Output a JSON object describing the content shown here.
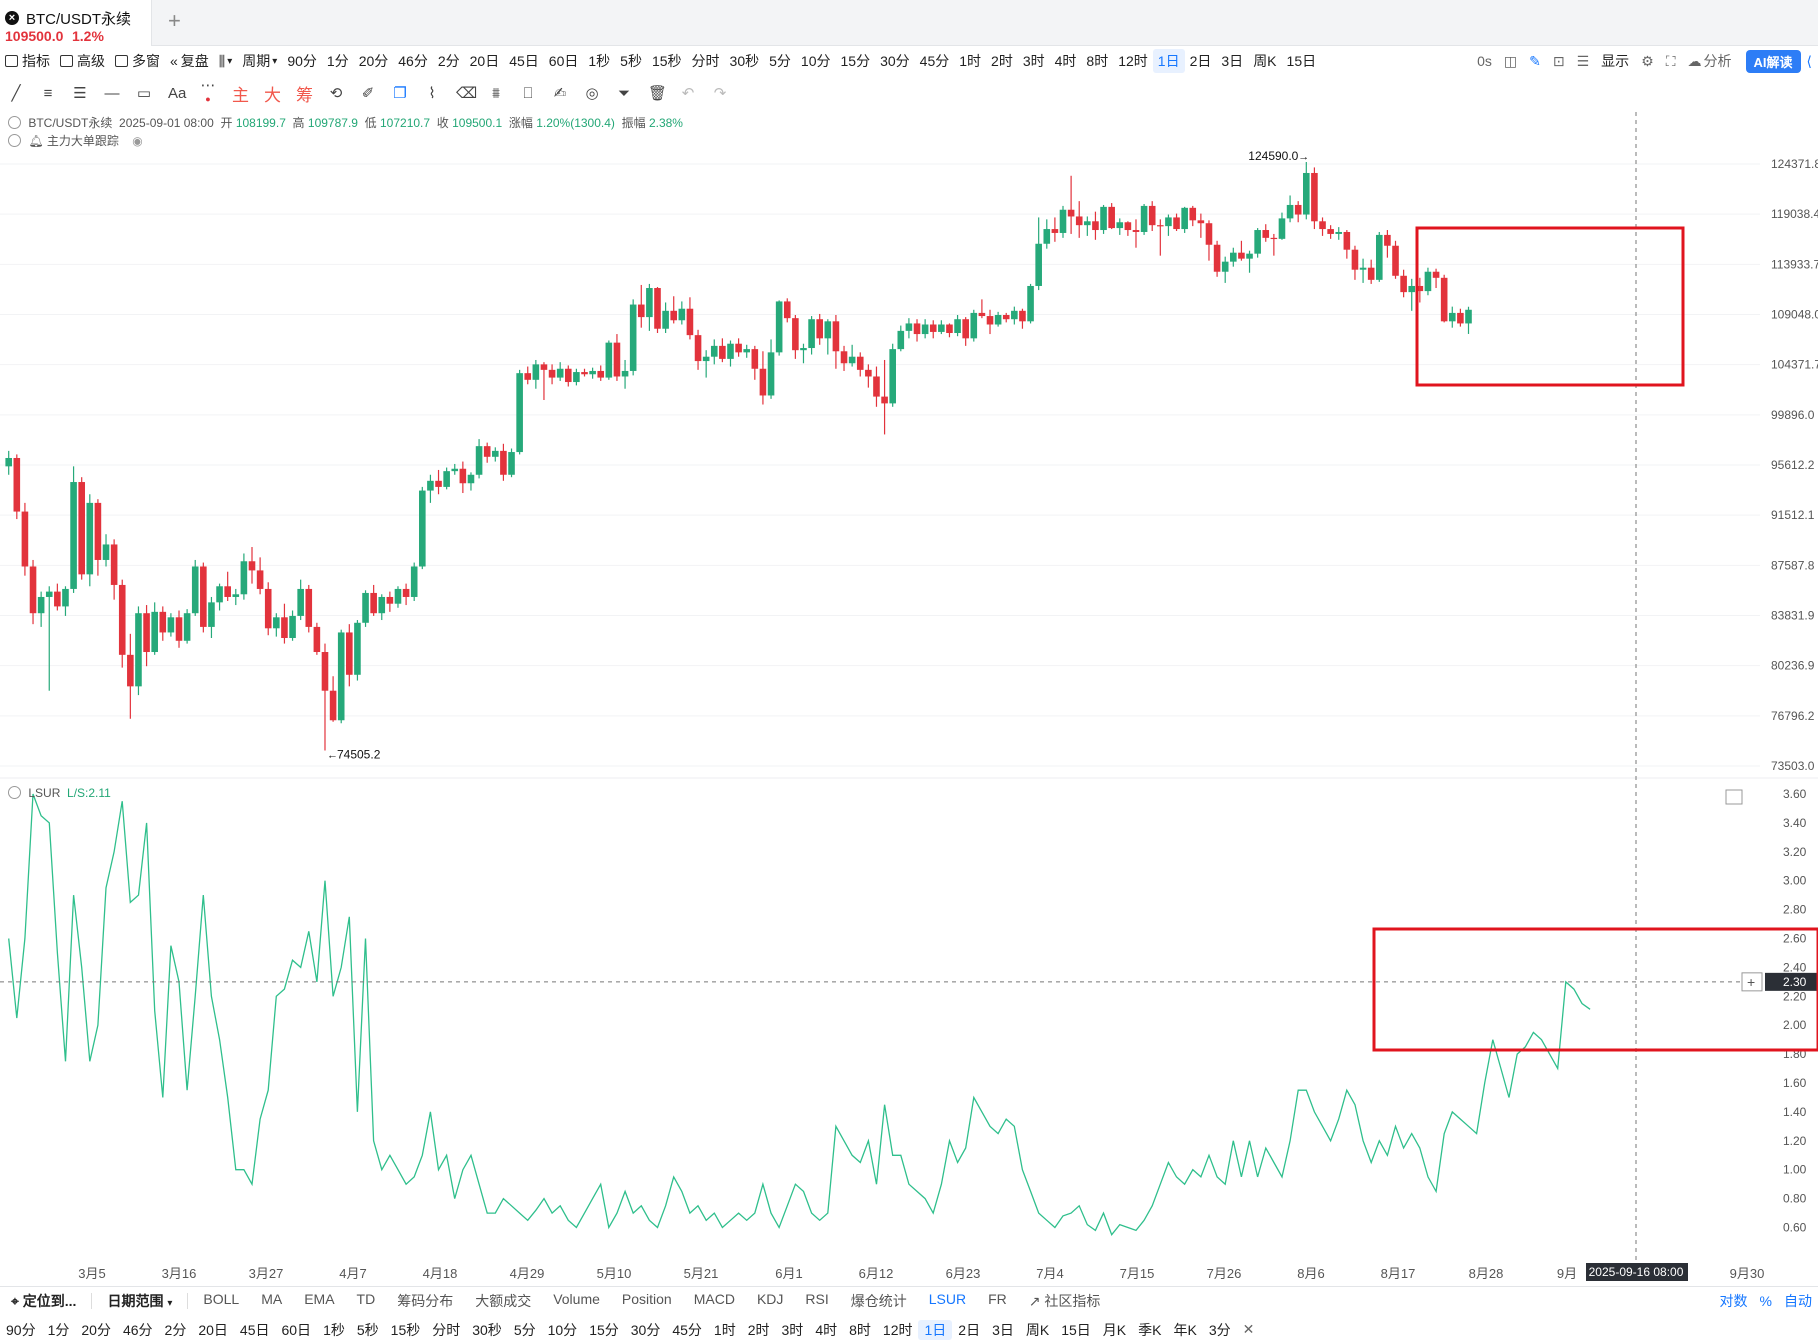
{
  "tab": {
    "title": "BTC/USDT永续",
    "price": "109500.0",
    "change": "1.2%"
  },
  "toolbar": {
    "indicators": "指标",
    "advanced": "高级",
    "multi_window": "多窗",
    "replay": "复盘",
    "period": "周期",
    "periods": [
      "90分",
      "1分",
      "20分",
      "46分",
      "2分",
      "20日",
      "45日",
      "60日",
      "1秒",
      "5秒",
      "15秒",
      "分时",
      "30秒",
      "5分",
      "10分",
      "15分",
      "30分",
      "45分",
      "1时",
      "2时",
      "3时",
      "4时",
      "8时",
      "12时",
      "1日",
      "2日",
      "3日",
      "周K",
      "15日"
    ],
    "active_period": "1日",
    "countdown": "0s",
    "display": "显示",
    "analysis": "分析",
    "ai": "AI解读"
  },
  "drawing_tools": {
    "main": "主",
    "big": "大",
    "chips": "筹",
    "text": "Aa"
  },
  "legend": {
    "symbol": "BTC/USDT永续",
    "datetime": "2025-09-01 08:00",
    "open_label": "开",
    "open": "108199.7",
    "high_label": "高",
    "high": "109787.9",
    "low_label": "低",
    "low": "107210.7",
    "close_label": "收",
    "close": "109500.1",
    "change_label": "涨幅",
    "change": "1.20%(1300.4)",
    "amp_label": "振幅",
    "amp": "2.38%",
    "indicator": "主力大单跟踪"
  },
  "lsur": {
    "name": "LSUR",
    "value": "L/S:2.11",
    "cursor_value": "2.30"
  },
  "price_axis": [
    "124371.8",
    "119038.4",
    "113933.7",
    "109048.0",
    "104371.7",
    "99896.0",
    "95612.2",
    "91512.1",
    "87587.8",
    "83831.9",
    "80236.9",
    "76796.2",
    "73503.0"
  ],
  "lsur_axis": [
    "3.60",
    "3.40",
    "3.20",
    "3.00",
    "2.80",
    "2.60",
    "2.40",
    "2.20",
    "2.00",
    "1.80",
    "1.60",
    "1.40",
    "1.20",
    "1.00",
    "0.80",
    "0.60"
  ],
  "date_axis": [
    "3月5",
    "3月16",
    "3月27",
    "4月7",
    "4月18",
    "4月29",
    "5月10",
    "5月21",
    "6月1",
    "6月12",
    "6月23",
    "7月4",
    "7月15",
    "7月26",
    "8月6",
    "8月17",
    "8月28",
    "9月",
    "9月30"
  ],
  "cursor_date": "2025-09-16 08:00",
  "annotations": {
    "high": "124590.0",
    "low": "74505.2"
  },
  "bottom_bar": {
    "locate": "定位到...",
    "date_range": "日期范围",
    "indicators": [
      "BOLL",
      "MA",
      "EMA",
      "TD",
      "筹码分布",
      "大额成交",
      "Volume",
      "Position",
      "MACD",
      "KDJ",
      "RSI",
      "爆仓统计",
      "LSUR",
      "FR"
    ],
    "active_indicator": "LSUR",
    "community": "社区指标",
    "log": "对数",
    "percent": "%",
    "auto": "自动"
  },
  "bottom_periods": [
    "90分",
    "1分",
    "20分",
    "46分",
    "2分",
    "20日",
    "45日",
    "60日",
    "1秒",
    "5秒",
    "15秒",
    "分时",
    "30秒",
    "5分",
    "10分",
    "15分",
    "30分",
    "45分",
    "1时",
    "2时",
    "3时",
    "4时",
    "8时",
    "12时",
    "1日",
    "2日",
    "3日",
    "周K",
    "15日",
    "月K",
    "季K",
    "年K",
    "3分"
  ],
  "bottom_active_period": "1日",
  "colors": {
    "up": "#26a97a",
    "down": "#e2333c",
    "lsur_line": "#2fbf8c",
    "highlight": "#e0141e",
    "accent": "#1677ff"
  },
  "chart_data": {
    "type": "candlestick",
    "x_start": "2025-02-24",
    "candles": [
      [
        95500,
        96800,
        94800,
        96200
      ],
      [
        96200,
        96500,
        91200,
        91800
      ],
      [
        91800,
        92500,
        86800,
        87500
      ],
      [
        87500,
        88000,
        83200,
        84000
      ],
      [
        84000,
        85600,
        83000,
        85200
      ],
      [
        85200,
        86000,
        78500,
        85600
      ],
      [
        85600,
        86200,
        84200,
        84500
      ],
      [
        84500,
        86000,
        83800,
        85800
      ],
      [
        85800,
        95500,
        85500,
        94200
      ],
      [
        94200,
        94600,
        86500,
        86900
      ],
      [
        86900,
        93200,
        86000,
        92500
      ],
      [
        92500,
        92800,
        86800,
        88000
      ],
      [
        88000,
        90000,
        87500,
        89200
      ],
      [
        89200,
        89600,
        85000,
        86100
      ],
      [
        86100,
        86500,
        80100,
        81000
      ],
      [
        81000,
        82500,
        76600,
        78800
      ],
      [
        78800,
        84500,
        78200,
        84000
      ],
      [
        84000,
        84600,
        80200,
        81200
      ],
      [
        81200,
        84800,
        81000,
        84100
      ],
      [
        84100,
        84500,
        82000,
        82600
      ],
      [
        82600,
        84000,
        82300,
        83700
      ],
      [
        83700,
        84200,
        81500,
        82000
      ],
      [
        82000,
        84300,
        81800,
        84000
      ],
      [
        84000,
        88000,
        83800,
        87500
      ],
      [
        87500,
        87800,
        82600,
        83000
      ],
      [
        83000,
        85200,
        82200,
        84800
      ],
      [
        84800,
        86200,
        84200,
        86000
      ],
      [
        86000,
        87100,
        84900,
        85200
      ],
      [
        85200,
        85800,
        84600,
        85400
      ],
      [
        85400,
        88500,
        85000,
        87900
      ],
      [
        87900,
        89000,
        86200,
        87200
      ],
      [
        87200,
        88200,
        85400,
        85800
      ],
      [
        85800,
        86300,
        82400,
        82900
      ],
      [
        82900,
        84000,
        82300,
        83700
      ],
      [
        83700,
        84700,
        81800,
        82200
      ],
      [
        82200,
        84200,
        82000,
        83800
      ],
      [
        83800,
        86500,
        83500,
        85800
      ],
      [
        85800,
        86100,
        82600,
        83000
      ],
      [
        83000,
        83300,
        81000,
        81200
      ],
      [
        81200,
        81800,
        74505,
        78500
      ],
      [
        78500,
        79500,
        76400,
        76500
      ],
      [
        76500,
        82800,
        76300,
        82600
      ],
      [
        82600,
        83200,
        78800,
        79600
      ],
      [
        79600,
        83500,
        79200,
        83300
      ],
      [
        83300,
        85700,
        83000,
        85500
      ],
      [
        85500,
        86100,
        83800,
        84000
      ],
      [
        84000,
        85400,
        83500,
        85200
      ],
      [
        85200,
        85600,
        84100,
        84700
      ],
      [
        84700,
        86000,
        84400,
        85800
      ],
      [
        85800,
        86200,
        84600,
        85200
      ],
      [
        85200,
        87800,
        84900,
        87500
      ],
      [
        87500,
        93800,
        87300,
        93500
      ],
      [
        93500,
        94800,
        92500,
        94300
      ],
      [
        94300,
        95200,
        93200,
        93800
      ],
      [
        93800,
        95400,
        93600,
        95100
      ],
      [
        95100,
        95700,
        94800,
        95300
      ],
      [
        95300,
        95900,
        93300,
        94100
      ],
      [
        94100,
        95000,
        93500,
        94800
      ],
      [
        94800,
        97800,
        94500,
        97200
      ],
      [
        97200,
        97500,
        95800,
        96300
      ],
      [
        96300,
        97100,
        95900,
        96800
      ],
      [
        96800,
        97400,
        94300,
        94800
      ],
      [
        94800,
        97000,
        94600,
        96700
      ],
      [
        96700,
        103900,
        96500,
        103600
      ],
      [
        103600,
        104200,
        102600,
        103000
      ],
      [
        103000,
        104800,
        102200,
        104400
      ],
      [
        104400,
        104600,
        101200,
        103900
      ],
      [
        103900,
        104400,
        102600,
        103200
      ],
      [
        103200,
        104600,
        102900,
        104000
      ],
      [
        104000,
        104300,
        102400,
        102800
      ],
      [
        102800,
        104000,
        102500,
        103700
      ],
      [
        103700,
        104000,
        103300,
        103500
      ],
      [
        103500,
        104100,
        103100,
        103800
      ],
      [
        103800,
        104300,
        102900,
        103200
      ],
      [
        103200,
        106600,
        103000,
        106400
      ],
      [
        106400,
        107200,
        102900,
        103300
      ],
      [
        103300,
        104800,
        102200,
        103800
      ],
      [
        103800,
        110500,
        103400,
        110000
      ],
      [
        110000,
        111900,
        107800,
        108800
      ],
      [
        108800,
        112000,
        107500,
        111600
      ],
      [
        111600,
        111700,
        107300,
        107700
      ],
      [
        107700,
        110200,
        107300,
        109400
      ],
      [
        109400,
        110800,
        108200,
        108500
      ],
      [
        108500,
        110300,
        108100,
        109600
      ],
      [
        109600,
        110700,
        106700,
        107100
      ],
      [
        107100,
        107600,
        103900,
        104700
      ],
      [
        104700,
        105700,
        103200,
        105100
      ],
      [
        105100,
        106700,
        104400,
        106100
      ],
      [
        106100,
        106800,
        104600,
        104900
      ],
      [
        104900,
        106600,
        104200,
        106300
      ],
      [
        106300,
        106800,
        105100,
        105500
      ],
      [
        105500,
        106200,
        105000,
        105800
      ],
      [
        105800,
        106100,
        103000,
        104000
      ],
      [
        104000,
        105600,
        100800,
        101600
      ],
      [
        101600,
        106700,
        101300,
        105500
      ],
      [
        105500,
        110400,
        105200,
        110300
      ],
      [
        110300,
        110600,
        108300,
        108700
      ],
      [
        108700,
        109000,
        104900,
        105700
      ],
      [
        105700,
        106300,
        104500,
        105900
      ],
      [
        105900,
        108900,
        105300,
        108600
      ],
      [
        108600,
        109100,
        106200,
        106800
      ],
      [
        106800,
        108600,
        105300,
        108400
      ],
      [
        108400,
        109000,
        104000,
        105600
      ],
      [
        105600,
        106100,
        103800,
        104500
      ],
      [
        104500,
        106200,
        104200,
        105100
      ],
      [
        105100,
        105500,
        103300,
        103900
      ],
      [
        103900,
        104400,
        102300,
        103300
      ],
      [
        103300,
        104200,
        100600,
        101500
      ],
      [
        101500,
        104800,
        98200,
        100900
      ],
      [
        100900,
        106300,
        100600,
        105800
      ],
      [
        105800,
        108000,
        105600,
        107500
      ],
      [
        107500,
        108700,
        106800,
        108200
      ],
      [
        108200,
        108600,
        106500,
        107200
      ],
      [
        107200,
        108600,
        106800,
        108100
      ],
      [
        108100,
        108500,
        106800,
        107400
      ],
      [
        107400,
        108500,
        107200,
        108100
      ],
      [
        108100,
        108200,
        106900,
        107300
      ],
      [
        107300,
        109000,
        107000,
        108600
      ],
      [
        108600,
        108800,
        106100,
        106800
      ],
      [
        106800,
        109500,
        106500,
        109200
      ],
      [
        109200,
        110500,
        108700,
        108900
      ],
      [
        108900,
        109500,
        107200,
        108100
      ],
      [
        108100,
        109300,
        107900,
        109000
      ],
      [
        109000,
        109200,
        108300,
        108600
      ],
      [
        108600,
        109800,
        108100,
        109400
      ],
      [
        109400,
        109600,
        107700,
        108400
      ],
      [
        108400,
        112000,
        108200,
        111800
      ],
      [
        111800,
        118700,
        111400,
        116000
      ],
      [
        116000,
        118500,
        115500,
        117500
      ],
      [
        117500,
        118700,
        116200,
        117100
      ],
      [
        117100,
        119900,
        116600,
        119500
      ],
      [
        119500,
        123100,
        117000,
        118800
      ],
      [
        118800,
        120400,
        116600,
        117900
      ],
      [
        117900,
        118800,
        116800,
        118300
      ],
      [
        118300,
        119300,
        116400,
        117400
      ],
      [
        117400,
        120000,
        117000,
        119800
      ],
      [
        119800,
        120200,
        117500,
        117600
      ],
      [
        117600,
        118600,
        116900,
        118200
      ],
      [
        118200,
        118300,
        116800,
        117400
      ],
      [
        117400,
        118500,
        115600,
        117200
      ],
      [
        117200,
        120100,
        116900,
        119900
      ],
      [
        119900,
        120400,
        117300,
        117900
      ],
      [
        117900,
        118500,
        114800,
        117800
      ],
      [
        117800,
        119000,
        116800,
        118700
      ],
      [
        118700,
        119100,
        117300,
        117500
      ],
      [
        117500,
        119800,
        117100,
        119700
      ],
      [
        119700,
        119900,
        117800,
        118400
      ],
      [
        118400,
        119100,
        116600,
        118100
      ],
      [
        118100,
        118400,
        114300,
        115900
      ],
      [
        115900,
        116300,
        112700,
        113200
      ],
      [
        113200,
        114700,
        112100,
        114200
      ],
      [
        114200,
        115600,
        113700,
        115100
      ],
      [
        115100,
        116300,
        114300,
        114500
      ],
      [
        114500,
        115300,
        113100,
        115000
      ],
      [
        115000,
        117600,
        114600,
        117400
      ],
      [
        117400,
        118000,
        116200,
        116600
      ],
      [
        116600,
        117000,
        114800,
        116500
      ],
      [
        116500,
        119200,
        116400,
        118600
      ],
      [
        118600,
        121000,
        118200,
        120000
      ],
      [
        120000,
        120400,
        118200,
        119000
      ],
      [
        119000,
        124590,
        118500,
        123400
      ],
      [
        123400,
        124000,
        117500,
        118300
      ],
      [
        118300,
        118700,
        116800,
        117500
      ],
      [
        117500,
        117900,
        116500,
        117000
      ],
      [
        117000,
        117700,
        116400,
        117200
      ],
      [
        117200,
        117400,
        114500,
        115400
      ],
      [
        115400,
        115800,
        112400,
        113400
      ],
      [
        113400,
        114500,
        112100,
        113600
      ],
      [
        113600,
        114400,
        112000,
        112400
      ],
      [
        112400,
        117200,
        112200,
        116900
      ],
      [
        116900,
        117400,
        114600,
        115800
      ],
      [
        115800,
        116300,
        112500,
        112800
      ],
      [
        112800,
        113400,
        110700,
        111200
      ],
      [
        111200,
        112500,
        109400,
        111800
      ],
      [
        111800,
        112600,
        110200,
        111300
      ],
      [
        111300,
        113600,
        110900,
        113200
      ],
      [
        113200,
        113500,
        111600,
        112600
      ],
      [
        112600,
        112900,
        108300,
        108400
      ],
      [
        108400,
        109800,
        107800,
        109200
      ],
      [
        109200,
        109600,
        107900,
        108200
      ],
      [
        108199.7,
        109787.9,
        107210.7,
        109500.1
      ]
    ],
    "lsur": [
      2.6,
      2.05,
      2.6,
      3.6,
      3.45,
      3.4,
      2.5,
      1.75,
      2.9,
      2.4,
      1.75,
      2.0,
      2.95,
      3.2,
      3.55,
      2.85,
      2.9,
      3.4,
      2.1,
      1.5,
      2.55,
      2.3,
      1.55,
      2.2,
      2.9,
      2.2,
      1.9,
      1.5,
      1.0,
      1.0,
      0.9,
      1.35,
      1.55,
      2.2,
      2.25,
      2.45,
      2.4,
      2.65,
      2.3,
      3.0,
      2.2,
      2.4,
      2.75,
      1.4,
      2.6,
      1.2,
      1.0,
      1.1,
      1.0,
      0.9,
      0.95,
      1.1,
      1.4,
      1.0,
      1.1,
      0.8,
      1.0,
      1.1,
      0.9,
      0.7,
      0.7,
      0.8,
      0.75,
      0.7,
      0.65,
      0.72,
      0.8,
      0.7,
      0.75,
      0.65,
      0.6,
      0.7,
      0.8,
      0.9,
      0.6,
      0.7,
      0.85,
      0.7,
      0.75,
      0.65,
      0.6,
      0.75,
      0.95,
      0.85,
      0.7,
      0.75,
      0.65,
      0.7,
      0.6,
      0.65,
      0.7,
      0.65,
      0.7,
      0.9,
      0.7,
      0.6,
      0.75,
      0.9,
      0.85,
      0.7,
      0.65,
      0.7,
      1.3,
      1.2,
      1.1,
      1.05,
      1.2,
      0.9,
      1.45,
      1.1,
      1.1,
      0.9,
      0.85,
      0.8,
      0.7,
      0.9,
      1.2,
      1.05,
      1.15,
      1.5,
      1.4,
      1.3,
      1.25,
      1.35,
      1.3,
      1.0,
      0.85,
      0.7,
      0.65,
      0.6,
      0.68,
      0.7,
      0.75,
      0.62,
      0.58,
      0.7,
      0.55,
      0.62,
      0.6,
      0.58,
      0.65,
      0.75,
      0.9,
      1.05,
      0.95,
      0.9,
      1.0,
      0.95,
      1.1,
      0.95,
      0.9,
      1.2,
      0.95,
      1.2,
      0.95,
      1.15,
      1.05,
      0.95,
      1.2,
      1.55,
      1.55,
      1.4,
      1.3,
      1.2,
      1.35,
      1.55,
      1.45,
      1.2,
      1.05,
      1.2,
      1.1,
      1.3,
      1.15,
      1.25,
      1.15,
      0.95,
      0.85,
      1.25,
      1.4,
      1.35,
      1.3,
      1.25,
      1.6,
      1.9,
      1.7,
      1.5,
      1.8,
      1.85,
      1.95,
      1.9,
      1.8,
      1.7,
      2.3,
      2.25,
      2.15,
      2.11
    ]
  }
}
